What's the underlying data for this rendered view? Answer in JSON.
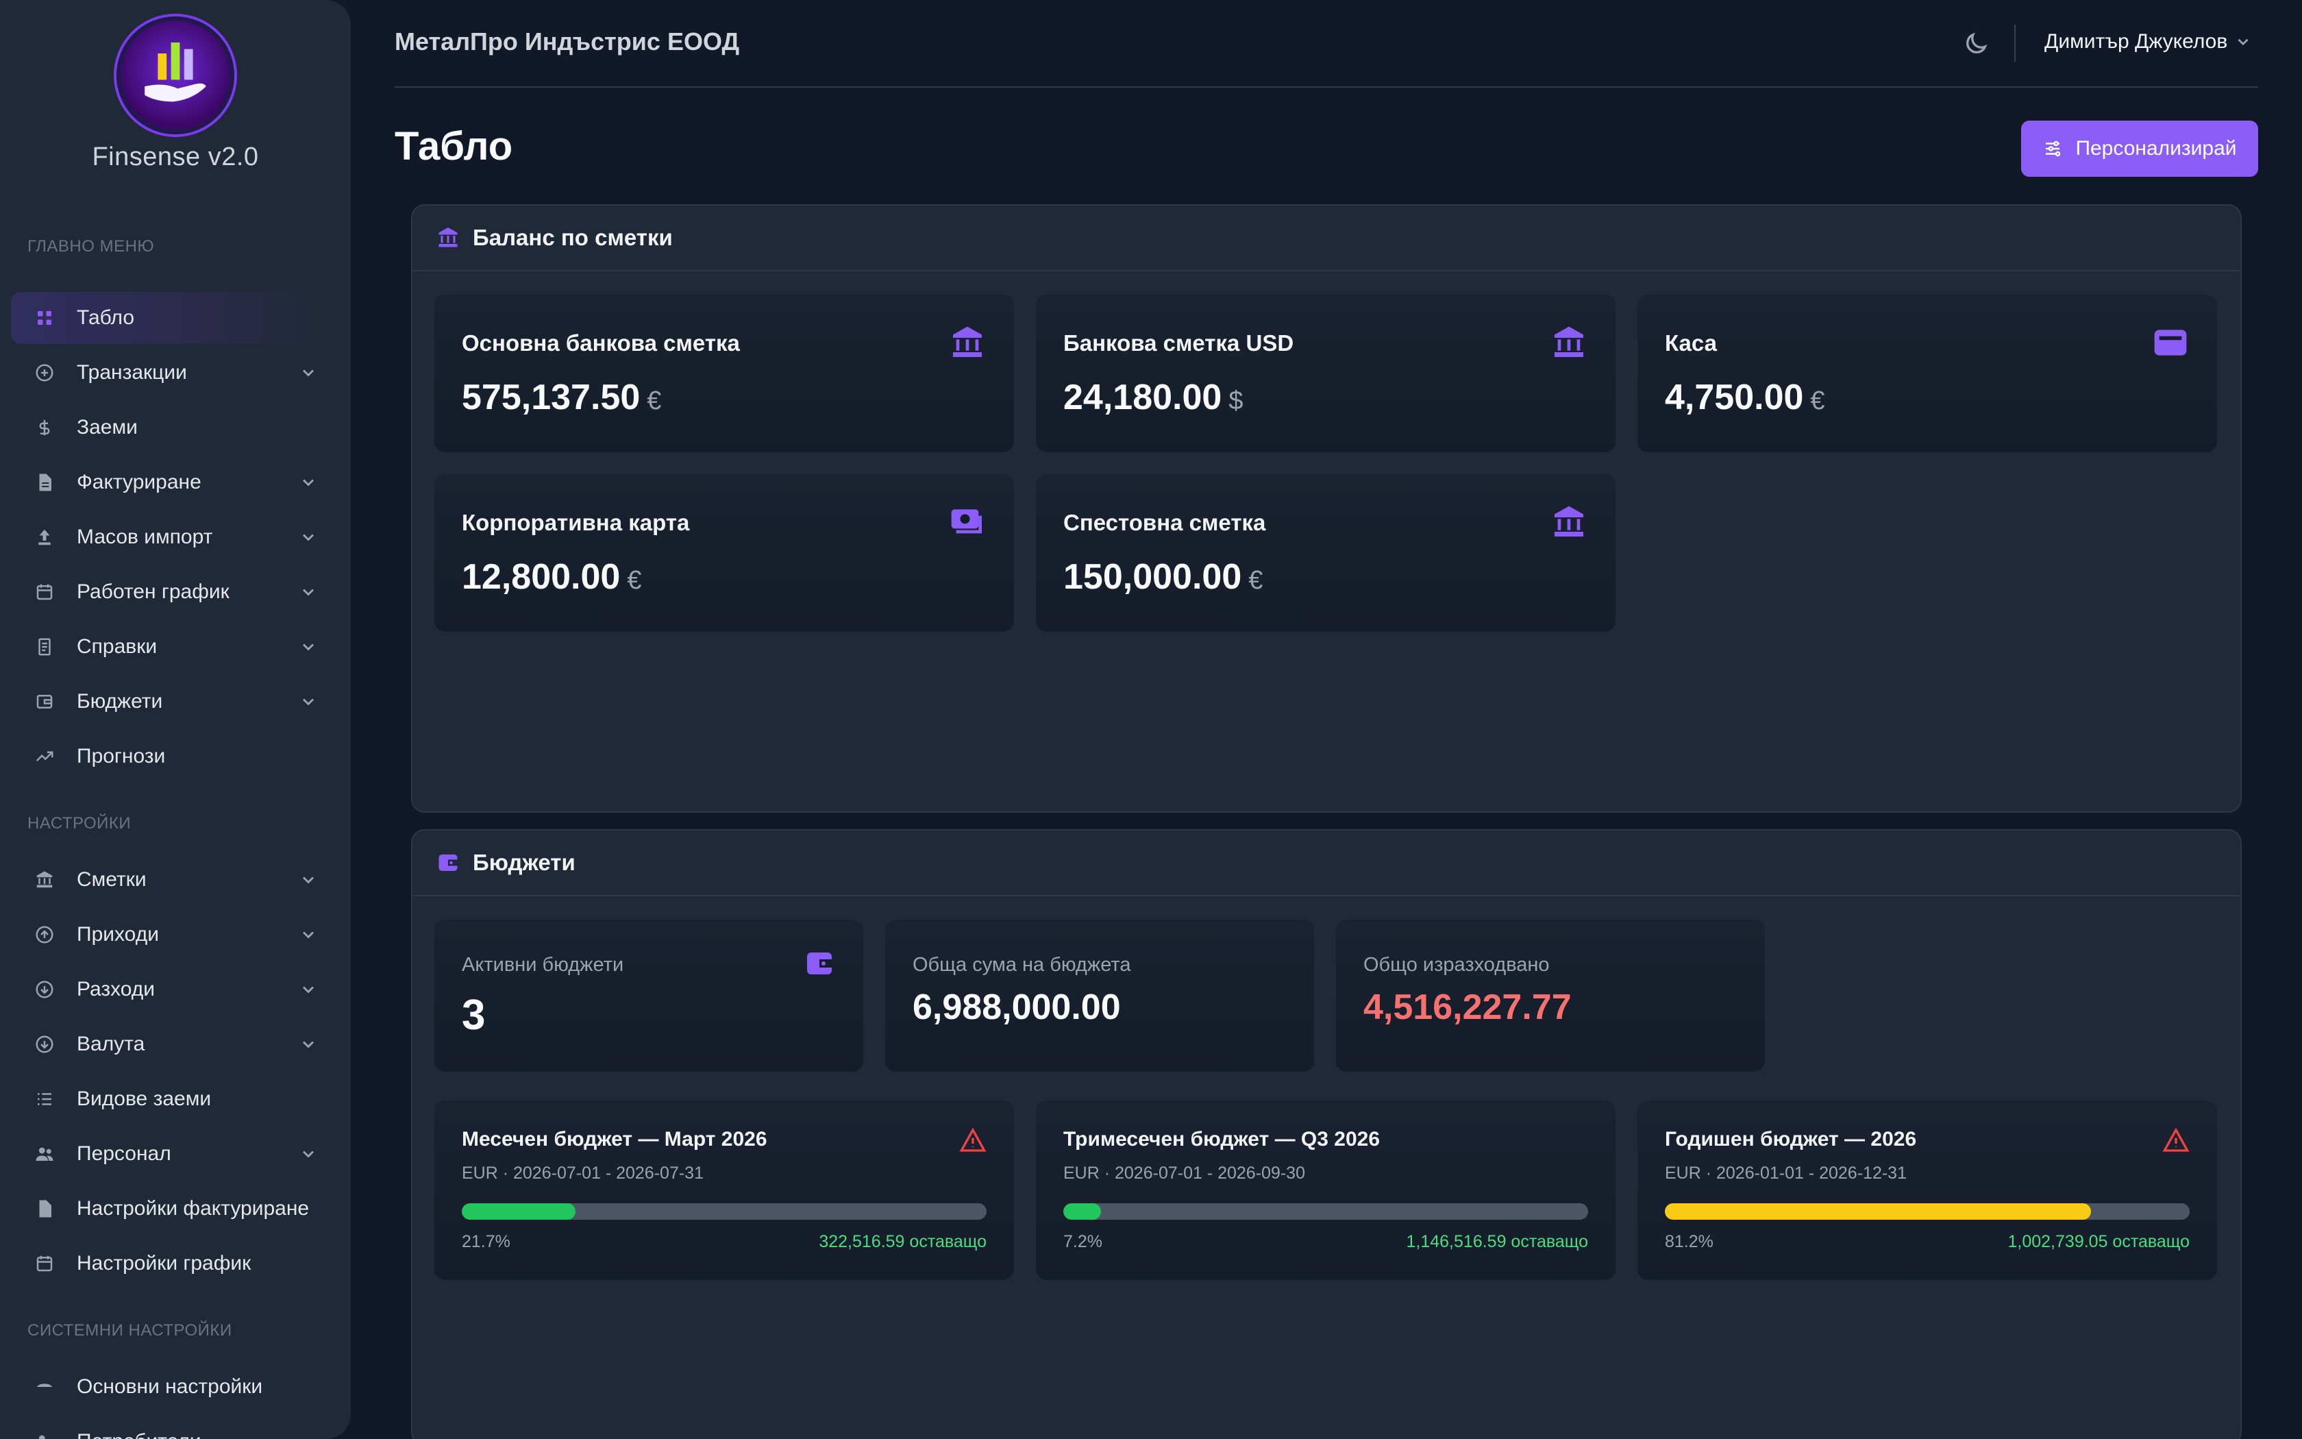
{
  "app": {
    "brand": "Finsense v2.0",
    "company": "МеталПро Индъстрис ЕООД",
    "user": "Димитър Джукелов"
  },
  "sidebar": {
    "main_label": "ГЛАВНО МЕНЮ",
    "main_items": [
      {
        "label": "Табло",
        "icon": "grid-icon",
        "expandable": false,
        "active": true
      },
      {
        "label": "Транзакции",
        "icon": "plus-circle-icon",
        "expandable": true
      },
      {
        "label": "Заеми",
        "icon": "dollar-icon",
        "expandable": false
      },
      {
        "label": "Фактуриране",
        "icon": "document-icon",
        "expandable": true
      },
      {
        "label": "Масов импорт",
        "icon": "upload-icon",
        "expandable": true
      },
      {
        "label": "Работен график",
        "icon": "calendar-icon",
        "expandable": true
      },
      {
        "label": "Справки",
        "icon": "report-icon",
        "expandable": true
      },
      {
        "label": "Бюджети",
        "icon": "wallet-icon",
        "expandable": true
      },
      {
        "label": "Прогнози",
        "icon": "trend-icon",
        "expandable": false
      }
    ],
    "settings_label": "НАСТРОЙКИ",
    "settings_items": [
      {
        "label": "Сметки",
        "icon": "bank-icon",
        "expandable": true
      },
      {
        "label": "Приходи",
        "icon": "arrow-up-circle-icon",
        "expandable": true
      },
      {
        "label": "Разходи",
        "icon": "arrow-down-circle-icon",
        "expandable": true
      },
      {
        "label": "Валута",
        "icon": "currency-circle-icon",
        "expandable": true
      },
      {
        "label": "Видове заеми",
        "icon": "list-icon",
        "expandable": false
      },
      {
        "label": "Персонал",
        "icon": "users-icon",
        "expandable": true
      },
      {
        "label": "Настройки фактуриране",
        "icon": "document-icon",
        "expandable": false
      },
      {
        "label": "Настройки график",
        "icon": "calendar-icon",
        "expandable": false
      }
    ],
    "system_label": "СИСТЕМНИ НАСТРОЙКИ",
    "system_items": [
      {
        "label": "Основни настройки",
        "icon": "settings-icon",
        "expandable": false
      },
      {
        "label": "Потребители",
        "icon": "users-icon",
        "expandable": false
      }
    ]
  },
  "page": {
    "title": "Табло",
    "customize_label": "Персонализирай"
  },
  "balances": {
    "title": "Баланс по сметки",
    "accounts": [
      {
        "name": "Основна банкова сметка",
        "amount": "575,137.50",
        "currency": "€",
        "icon": "bank-icon"
      },
      {
        "name": "Банкова сметка USD",
        "amount": "24,180.00",
        "currency": "$",
        "icon": "bank-icon"
      },
      {
        "name": "Каса",
        "amount": "4,750.00",
        "currency": "€",
        "icon": "cash-box-icon"
      },
      {
        "name": "Корпоративна карта",
        "amount": "12,800.00",
        "currency": "€",
        "icon": "cash-icon"
      },
      {
        "name": "Спестовна сметка",
        "amount": "150,000.00",
        "currency": "€",
        "icon": "bank-icon"
      }
    ]
  },
  "budgets": {
    "title": "Бюджети",
    "stats": [
      {
        "label": "Активни бюджети",
        "value": "3"
      },
      {
        "label": "Обща сума на бюджета",
        "value": "6,988,000.00"
      },
      {
        "label": "Общо изразходвано",
        "value": "4,516,227.77"
      }
    ],
    "items": [
      {
        "name": "Месечен бюджет — Март 2026",
        "meta": "EUR · 2026-07-01 - 2026-07-31",
        "percent": 21.7,
        "percent_label": "21.7%",
        "remaining": "322,516.59 оставащо",
        "color": "#22c55e",
        "warning": true
      },
      {
        "name": "Тримесечен бюджет — Q3 2026",
        "meta": "EUR · 2026-07-01 - 2026-09-30",
        "percent": 7.2,
        "percent_label": "7.2%",
        "remaining": "1,146,516.59 оставащо",
        "color": "#22c55e",
        "warning": false
      },
      {
        "name": "Годишен бюджет — 2026",
        "meta": "EUR · 2026-01-01 - 2026-12-31",
        "percent": 81.2,
        "percent_label": "81.2%",
        "remaining": "1,002,739.05 оставащо",
        "color": "#facc15",
        "warning": true
      }
    ]
  },
  "colors": {
    "accent": "#8b5cf6",
    "danger": "#f87171",
    "success": "#4ade80"
  }
}
